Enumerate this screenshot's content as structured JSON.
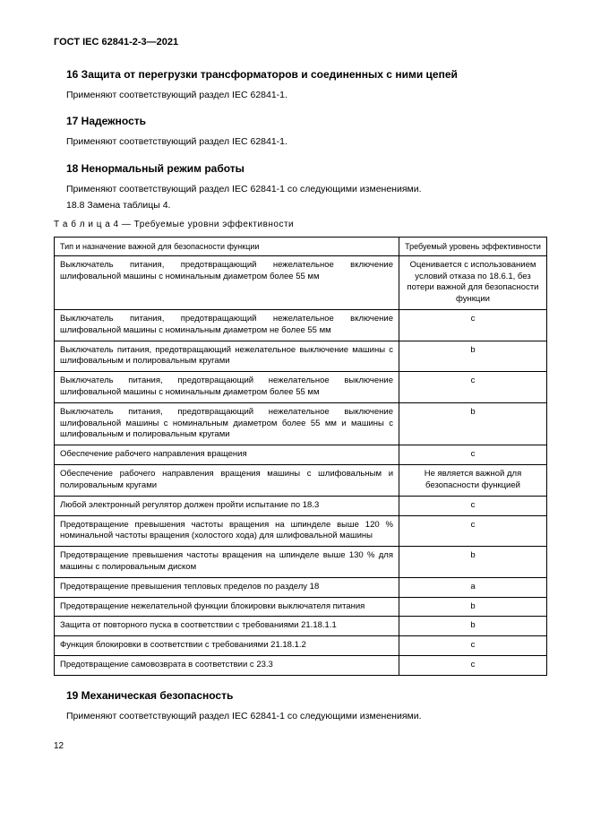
{
  "doc_id": "ГОСТ IEC 62841-2-3—2021",
  "sections": {
    "s16": {
      "title": "16 Защита от перегрузки трансформаторов и соединенных с ними цепей",
      "text": "Применяют соответствующий раздел IEC 62841-1."
    },
    "s17": {
      "title": "17 Надежность",
      "text": "Применяют соответствующий раздел IEC 62841-1."
    },
    "s18": {
      "title": "18 Ненормальный режим работы",
      "text1": "Применяют соответствующий раздел IEC 62841-1 со следующими изменениями.",
      "text2": "18.8 Замена таблицы 4."
    },
    "s19": {
      "title": "19 Механическая безопасность",
      "text": "Применяют соответствующий раздел IEC 62841-1 со следующими изменениями."
    }
  },
  "table": {
    "caption": "Т а б л и ц а   4 — Требуемые уровни эффективности",
    "header_func": "Тип и назначение важной для безопасности функции",
    "header_level": "Требуемый уровень эффективности",
    "rows": [
      {
        "func": "Выключатель питания, предотвращающий нежелательное включение шлифовальной машины с номинальным диаметром более 55 мм",
        "level": "Оценивается с использованием условий отказа по 18.6.1, без потери важной для безопасности функции"
      },
      {
        "func": "Выключатель питания, предотвращающий нежелательное включение шлифовальной машины с номинальным диаметром не более 55 мм",
        "level": "c"
      },
      {
        "func": "Выключатель питания, предотвращающий нежелательное выключение машины с шлифовальным и полировальным кругами",
        "level": "b"
      },
      {
        "func": "Выключатель питания, предотвращающий нежелательное выключение шлифовальной машины с номинальным диаметром более 55 мм",
        "level": "c"
      },
      {
        "func": "Выключатель питания, предотвращающий нежелательное выключение шлифовальной машины с номинальным диаметром более 55 мм и машины с шлифовальным и полировальным кругами",
        "level": "b"
      },
      {
        "func": "Обеспечение рабочего направления вращения",
        "level": "c"
      },
      {
        "func": "Обеспечение рабочего направления вращения машины с шлифовальным и полировальным кругами",
        "level": "Не является важной для безопасности функцией"
      },
      {
        "func": "Любой электронный регулятор должен пройти испытание по 18.3",
        "level": "c"
      },
      {
        "func": "Предотвращение превышения частоты вращения на шпинделе выше 120 % номинальной частоты вращения (холостого хода) для шлифовальной машины",
        "level": "c"
      },
      {
        "func": "Предотвращение превышения частоты вращения на шпинделе выше 130 % для машины с полировальным диском",
        "level": "b"
      },
      {
        "func": "Предотвращение превышения тепловых пределов по разделу 18",
        "level": "a"
      },
      {
        "func": "Предотвращение нежелательной функции блокировки выключателя питания",
        "level": "b"
      },
      {
        "func": "Защита от повторного пуска в соответствии с требованиями 21.18.1.1",
        "level": "b"
      },
      {
        "func": "Функция блокировки в соответствии с требованиями 21.18.1.2",
        "level": "c"
      },
      {
        "func": "Предотвращение самовозврата в соответствии с 23.3",
        "level": "c"
      }
    ]
  },
  "page_number": "12"
}
